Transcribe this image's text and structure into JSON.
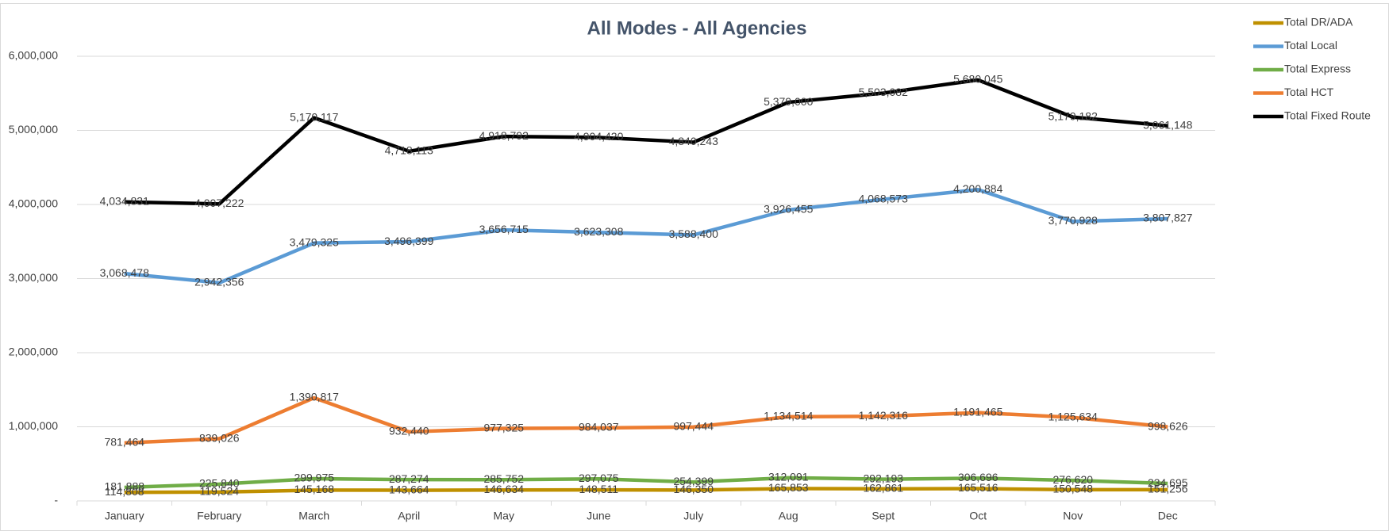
{
  "chart_data": {
    "type": "line",
    "title": "All Modes - All Agencies",
    "categories": [
      "January",
      "February",
      "March",
      "April",
      "May",
      "June",
      "July",
      "Aug",
      "Sept",
      "Oct",
      "Nov",
      "Dec"
    ],
    "ylim": [
      0,
      6000000
    ],
    "yticks": [
      {
        "value": 0,
        "label": "-"
      },
      {
        "value": 1000000,
        "label": "1,000,000"
      },
      {
        "value": 2000000,
        "label": "2,000,000"
      },
      {
        "value": 3000000,
        "label": "3,000,000"
      },
      {
        "value": 4000000,
        "label": "4,000,000"
      },
      {
        "value": 5000000,
        "label": "5,000,000"
      },
      {
        "value": 6000000,
        "label": "6,000,000"
      }
    ],
    "grid": true,
    "legend": "right",
    "series": [
      {
        "name": "Total DR/ADA",
        "color": "#bf9000",
        "values": [
          114808,
          119524,
          145168,
          143664,
          146634,
          148511,
          146350,
          165853,
          162861,
          165516,
          150548,
          151256
        ],
        "value_labels": [
          "114,808",
          "119,524",
          "145,168",
          "143,664",
          "146,634",
          "148,511",
          "146,350",
          "165,853",
          "162,861",
          "165,516",
          "150,548",
          "151,256"
        ]
      },
      {
        "name": "Total Local",
        "color": "#5b9bd5",
        "values": [
          3068478,
          2942356,
          3479325,
          3496399,
          3656715,
          3623308,
          3588400,
          3926455,
          4068573,
          4200884,
          3770928,
          3807827
        ],
        "value_labels": [
          "3,068,478",
          "2,942,356",
          "3,479,325",
          "3,496,399",
          "3,656,715",
          "3,623,308",
          "3,588,400",
          "3,926,455",
          "4,068,573",
          "4,200,884",
          "3,770,928",
          "3,807,827"
        ]
      },
      {
        "name": "Total Express",
        "color": "#70ad47",
        "values": [
          181888,
          225840,
          299975,
          287274,
          285752,
          297075,
          254399,
          312091,
          292193,
          306696,
          276620,
          234695
        ],
        "value_labels": [
          "181,888",
          "225,840",
          "299,975",
          "287,274",
          "285,752",
          "297,075",
          "254,399",
          "312,091",
          "292,193",
          "306,696",
          "276,620",
          "234,695"
        ]
      },
      {
        "name": "Total HCT",
        "color": "#ed7d31",
        "values": [
          781464,
          839026,
          1390817,
          932440,
          977325,
          984037,
          997444,
          1134514,
          1142316,
          1191465,
          1125634,
          998626
        ],
        "value_labels": [
          "781,464",
          "839,026",
          "1,390,817",
          "932,440",
          "977,325",
          "984,037",
          "997,444",
          "1,134,514",
          "1,142,316",
          "1,191,465",
          "1,125,634",
          "998,626"
        ]
      },
      {
        "name": "Total Fixed Route",
        "color": "#000000",
        "values": [
          4034831,
          4007222,
          5170117,
          4718113,
          4918792,
          4904420,
          4840243,
          5379000,
          5503082,
          5680045,
          5179182,
          5061148
        ],
        "value_labels": [
          "4,034,831",
          "4,007,222",
          "5,170,117",
          "4,718,113",
          "4,918,792",
          "4,904,420",
          "4,840,243",
          "5,379,000",
          "5,503,082",
          "5,680,045",
          "5,179,182",
          "5,061,148"
        ]
      }
    ]
  }
}
